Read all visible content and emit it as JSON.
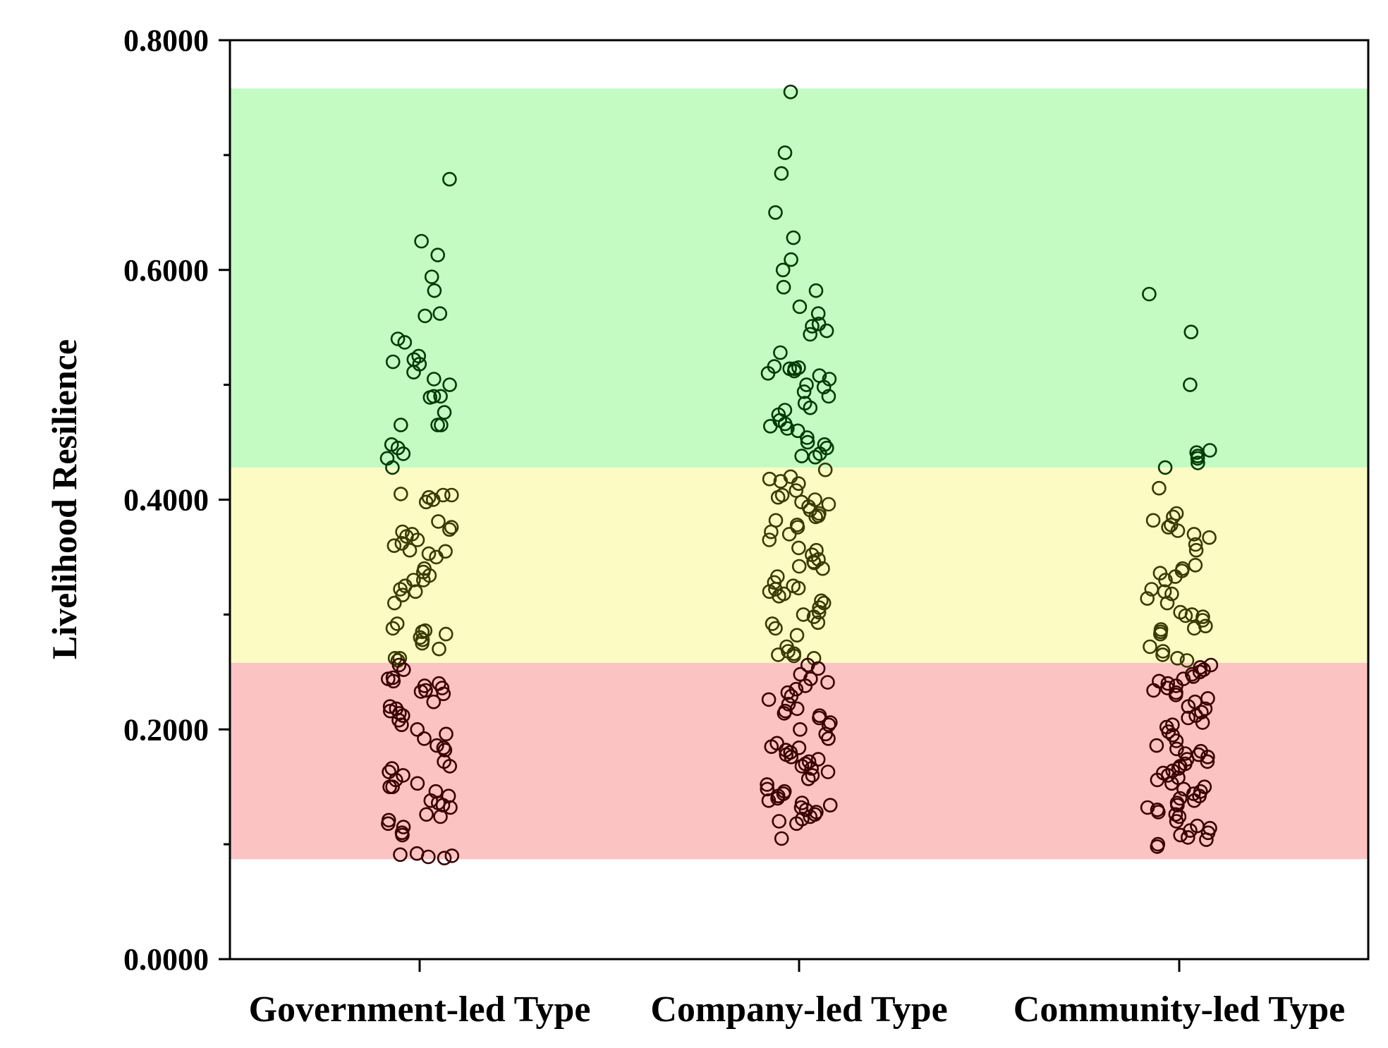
{
  "chart_data": {
    "type": "scatter",
    "subtype": "jittered strip plot",
    "title": "",
    "xlabel": "",
    "ylabel": "Livelihood Resilience",
    "ylim": [
      0,
      0.8
    ],
    "yticks": [
      "0.0000",
      "0.2000",
      "0.4000",
      "0.6000",
      "0.8000"
    ],
    "categories": [
      "Government-led Type",
      "Company-led Type",
      "Community-led Type"
    ],
    "bands": [
      {
        "from": 0.087,
        "to": 0.258,
        "color": "#fcc3c3"
      },
      {
        "from": 0.258,
        "to": 0.428,
        "color": "#fbfbc3"
      },
      {
        "from": 0.428,
        "to": 0.758,
        "color": "#c3fbc3"
      }
    ],
    "point_colors": [
      {
        "max": 0.258,
        "color": "#3a0000"
      },
      {
        "max": 0.428,
        "color": "#3a3a00"
      },
      {
        "max": 1.0,
        "color": "#003a00"
      }
    ],
    "series": [
      {
        "name": "Government-led Type",
        "values": [
          0.679,
          0.625,
          0.613,
          0.594,
          0.582,
          0.562,
          0.56,
          0.54,
          0.537,
          0.525,
          0.522,
          0.52,
          0.518,
          0.511,
          0.505,
          0.5,
          0.49,
          0.49,
          0.489,
          0.476,
          0.465,
          0.465,
          0.465,
          0.448,
          0.445,
          0.44,
          0.436,
          0.428,
          0.405,
          0.404,
          0.404,
          0.402,
          0.4,
          0.398,
          0.381,
          0.376,
          0.374,
          0.372,
          0.37,
          0.368,
          0.365,
          0.362,
          0.36,
          0.356,
          0.355,
          0.353,
          0.35,
          0.34,
          0.337,
          0.334,
          0.33,
          0.33,
          0.325,
          0.322,
          0.32,
          0.317,
          0.31,
          0.292,
          0.288,
          0.286,
          0.285,
          0.283,
          0.28,
          0.278,
          0.275,
          0.27,
          0.262,
          0.262,
          0.26,
          0.256,
          0.252,
          0.245,
          0.244,
          0.242,
          0.24,
          0.238,
          0.236,
          0.234,
          0.233,
          0.231,
          0.224,
          0.22,
          0.218,
          0.216,
          0.214,
          0.212,
          0.208,
          0.204,
          0.2,
          0.196,
          0.192,
          0.186,
          0.184,
          0.182,
          0.172,
          0.168,
          0.166,
          0.163,
          0.16,
          0.156,
          0.153,
          0.15,
          0.15,
          0.146,
          0.142,
          0.138,
          0.136,
          0.134,
          0.132,
          0.126,
          0.124,
          0.121,
          0.118,
          0.115,
          0.11,
          0.108,
          0.092,
          0.091,
          0.09,
          0.089,
          0.088
        ]
      },
      {
        "name": "Company-led Type",
        "values": [
          0.755,
          0.702,
          0.684,
          0.65,
          0.628,
          0.609,
          0.6,
          0.585,
          0.582,
          0.568,
          0.562,
          0.553,
          0.551,
          0.547,
          0.544,
          0.528,
          0.516,
          0.515,
          0.514,
          0.514,
          0.512,
          0.51,
          0.508,
          0.505,
          0.5,
          0.498,
          0.494,
          0.49,
          0.484,
          0.48,
          0.478,
          0.474,
          0.469,
          0.466,
          0.464,
          0.462,
          0.46,
          0.454,
          0.45,
          0.448,
          0.445,
          0.44,
          0.438,
          0.437,
          0.426,
          0.42,
          0.418,
          0.416,
          0.414,
          0.408,
          0.404,
          0.402,
          0.4,
          0.398,
          0.396,
          0.394,
          0.391,
          0.388,
          0.386,
          0.385,
          0.382,
          0.378,
          0.376,
          0.372,
          0.37,
          0.365,
          0.358,
          0.356,
          0.352,
          0.348,
          0.346,
          0.345,
          0.342,
          0.34,
          0.333,
          0.328,
          0.325,
          0.323,
          0.322,
          0.32,
          0.318,
          0.316,
          0.312,
          0.31,
          0.306,
          0.302,
          0.3,
          0.298,
          0.293,
          0.292,
          0.288,
          0.282,
          0.272,
          0.268,
          0.266,
          0.265,
          0.264,
          0.262,
          0.256,
          0.253,
          0.248,
          0.244,
          0.241,
          0.238,
          0.235,
          0.232,
          0.229,
          0.226,
          0.222,
          0.218,
          0.216,
          0.214,
          0.212,
          0.21,
          0.206,
          0.204,
          0.2,
          0.196,
          0.192,
          0.188,
          0.185,
          0.184,
          0.182,
          0.18,
          0.178,
          0.176,
          0.174,
          0.172,
          0.17,
          0.168,
          0.166,
          0.163,
          0.16,
          0.157,
          0.152,
          0.148,
          0.146,
          0.144,
          0.142,
          0.14,
          0.138,
          0.136,
          0.134,
          0.132,
          0.13,
          0.128,
          0.126,
          0.124,
          0.122,
          0.12,
          0.118,
          0.105
        ]
      },
      {
        "name": "Community-led Type",
        "values": [
          0.579,
          0.546,
          0.5,
          0.443,
          0.441,
          0.438,
          0.436,
          0.432,
          0.428,
          0.41,
          0.388,
          0.385,
          0.382,
          0.378,
          0.376,
          0.373,
          0.37,
          0.367,
          0.361,
          0.356,
          0.343,
          0.34,
          0.338,
          0.336,
          0.333,
          0.33,
          0.322,
          0.32,
          0.318,
          0.314,
          0.31,
          0.302,
          0.3,
          0.299,
          0.298,
          0.295,
          0.29,
          0.288,
          0.287,
          0.285,
          0.283,
          0.272,
          0.268,
          0.265,
          0.262,
          0.26,
          0.256,
          0.254,
          0.252,
          0.25,
          0.248,
          0.246,
          0.244,
          0.242,
          0.24,
          0.238,
          0.236,
          0.234,
          0.232,
          0.23,
          0.227,
          0.224,
          0.22,
          0.218,
          0.215,
          0.212,
          0.21,
          0.206,
          0.204,
          0.202,
          0.198,
          0.195,
          0.19,
          0.186,
          0.183,
          0.181,
          0.179,
          0.178,
          0.176,
          0.174,
          0.172,
          0.17,
          0.168,
          0.166,
          0.164,
          0.162,
          0.16,
          0.158,
          0.156,
          0.153,
          0.15,
          0.148,
          0.146,
          0.144,
          0.142,
          0.14,
          0.138,
          0.136,
          0.134,
          0.132,
          0.13,
          0.128,
          0.126,
          0.124,
          0.12,
          0.116,
          0.114,
          0.112,
          0.11,
          0.108,
          0.106,
          0.104,
          0.1,
          0.098
        ]
      }
    ]
  }
}
